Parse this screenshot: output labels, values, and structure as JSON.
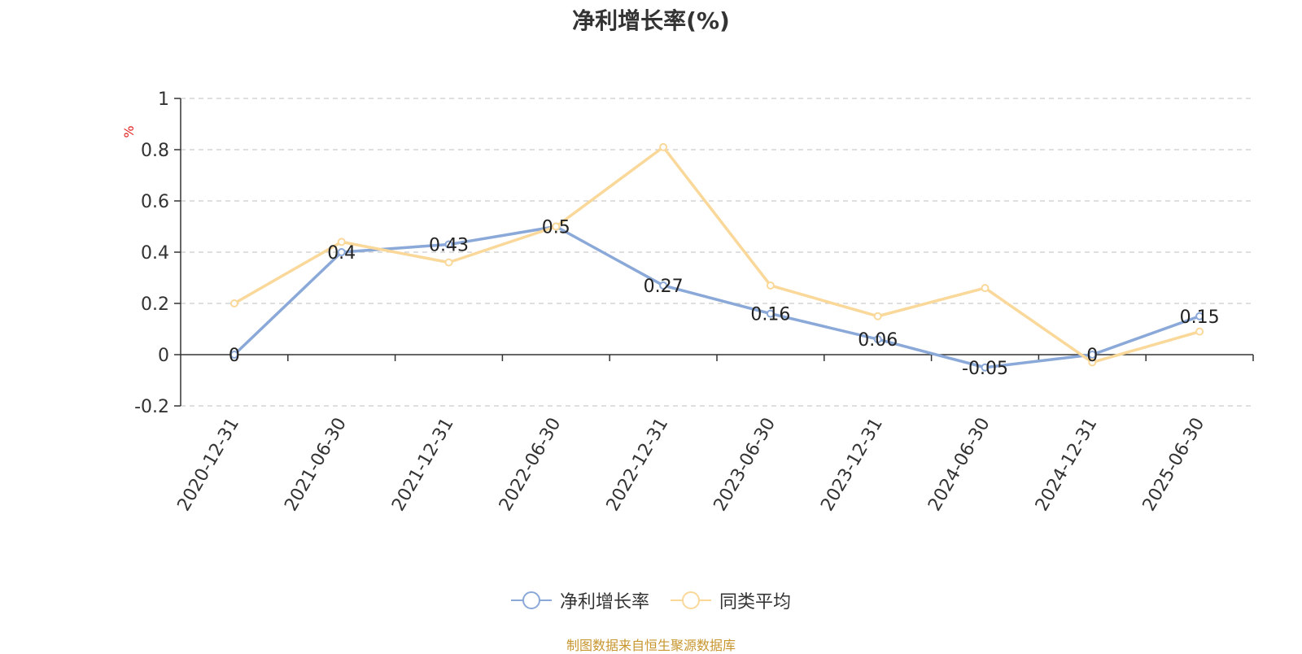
{
  "title": "净利增长率(%)",
  "source_note": "制图数据来自恒生聚源数据库",
  "colors": {
    "series1": "#8aa8d8",
    "series2": "#fad89a",
    "axis": "#333333",
    "grid": "#cccccc",
    "unit": "#e02020",
    "source": "#c8962e"
  },
  "chart_data": {
    "type": "line",
    "title": "净利增长率(%)",
    "ylabel": "%",
    "xlabel": "",
    "ylim": [
      -0.2,
      1
    ],
    "yticks": [
      -0.2,
      0,
      0.2,
      0.4,
      0.6,
      0.8,
      1
    ],
    "ytick_labels": [
      "-0.2",
      "0",
      "0.2",
      "0.4",
      "0.6",
      "0.8",
      "1"
    ],
    "grid": true,
    "legend_position": "bottom-center",
    "categories": [
      "2020-12-31",
      "2021-06-30",
      "2021-12-31",
      "2022-06-30",
      "2022-12-31",
      "2023-06-30",
      "2023-12-31",
      "2024-06-30",
      "2024-12-31",
      "2025-06-30"
    ],
    "series": [
      {
        "name": "净利增长率",
        "values": [
          0,
          0.4,
          0.43,
          0.5,
          0.27,
          0.16,
          0.06,
          -0.05,
          0,
          0.15
        ],
        "data_labels": [
          "0",
          "0.4",
          "0.43",
          "0.5",
          "0.27",
          "0.16",
          "0.06",
          "-0.05",
          "0",
          "0.15"
        ]
      },
      {
        "name": "同类平均",
        "values": [
          0.2,
          0.44,
          0.36,
          0.5,
          0.81,
          0.27,
          0.15,
          0.26,
          -0.03,
          0.09
        ]
      }
    ]
  }
}
